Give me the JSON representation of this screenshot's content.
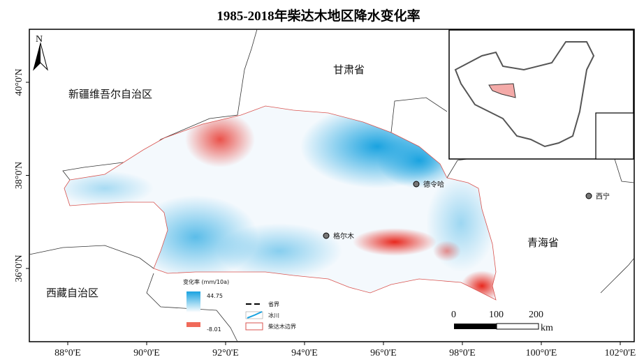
{
  "title": "1985-2018年柴达木地区降水变化率",
  "north_label": "N",
  "regions": {
    "xinjiang": "新疆维吾尔自治区",
    "gansu": "甘肃省",
    "qinghai": "青海省",
    "xizang": "西藏自治区"
  },
  "cities": [
    {
      "name": "德令哈"
    },
    {
      "name": "格尔木"
    },
    {
      "name": "西宁"
    }
  ],
  "x_ticks": [
    "88°0'E",
    "90°0'E",
    "92°0'E",
    "94°0'E",
    "96°0'E",
    "98°0'E",
    "100°0'E",
    "102°0'E"
  ],
  "y_ticks": [
    "40°0'N",
    "38°0'N",
    "36°0'N"
  ],
  "legend": {
    "title": "变化率 (mm/10a)",
    "max": "44.75",
    "min": "-8.01",
    "items": [
      "省界",
      "冰川",
      "柴达木边界"
    ],
    "colors": {
      "high": "#1aa3e0",
      "low": "#e8281e",
      "boundary": "#d9534f"
    }
  },
  "scale_bar": {
    "labels": [
      "0",
      "100",
      "200"
    ],
    "unit": "km"
  }
}
